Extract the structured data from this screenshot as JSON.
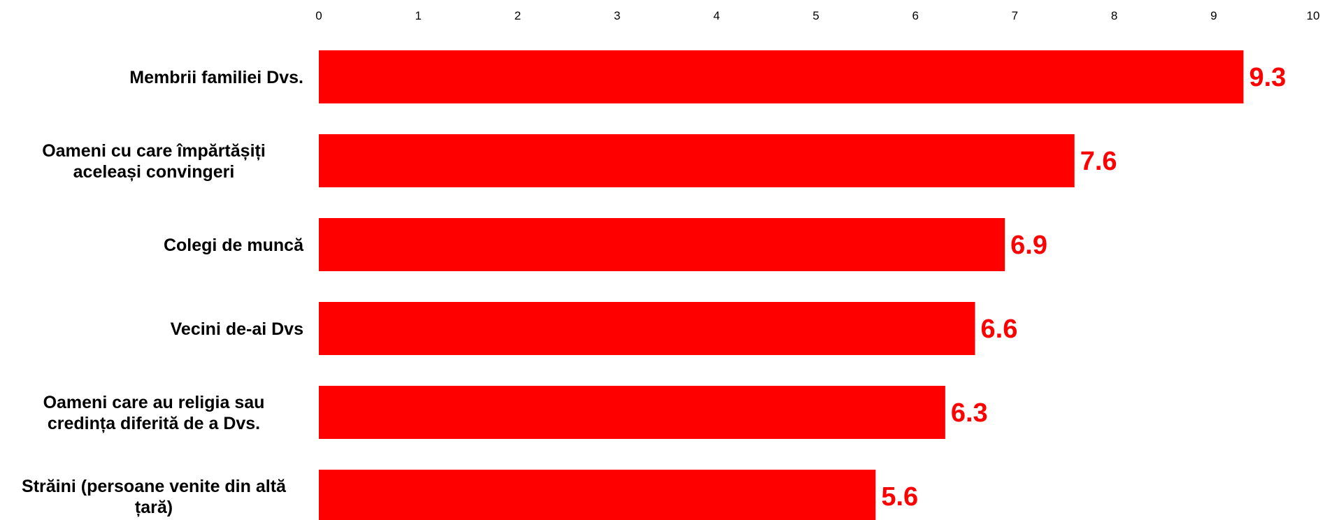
{
  "chart_data": {
    "type": "bar",
    "orientation": "horizontal",
    "axis_position": "top",
    "xlim": [
      0,
      10
    ],
    "ticks": [
      "0",
      "1",
      "2",
      "3",
      "4",
      "5",
      "6",
      "7",
      "8",
      "9",
      "10"
    ],
    "categories": [
      [
        "Membrii familiei Dvs."
      ],
      [
        "Oameni cu care împărtășiți",
        "aceleași convingeri"
      ],
      [
        "Colegi de muncă"
      ],
      [
        "Vecini de-ai Dvs"
      ],
      [
        "Oameni care au religia sau",
        "credința diferită de a Dvs."
      ],
      [
        "Străini (persoane venite din altă",
        "țară)"
      ]
    ],
    "values": [
      9.3,
      7.6,
      6.9,
      6.6,
      6.3,
      5.6
    ],
    "value_labels": [
      "9.3",
      "7.6",
      "6.9",
      "6.6",
      "6.3",
      "5.6"
    ],
    "bar_color": "#ff0000",
    "label_color": "#ff0000",
    "grid": false,
    "title": "",
    "xlabel": "",
    "ylabel": ""
  }
}
